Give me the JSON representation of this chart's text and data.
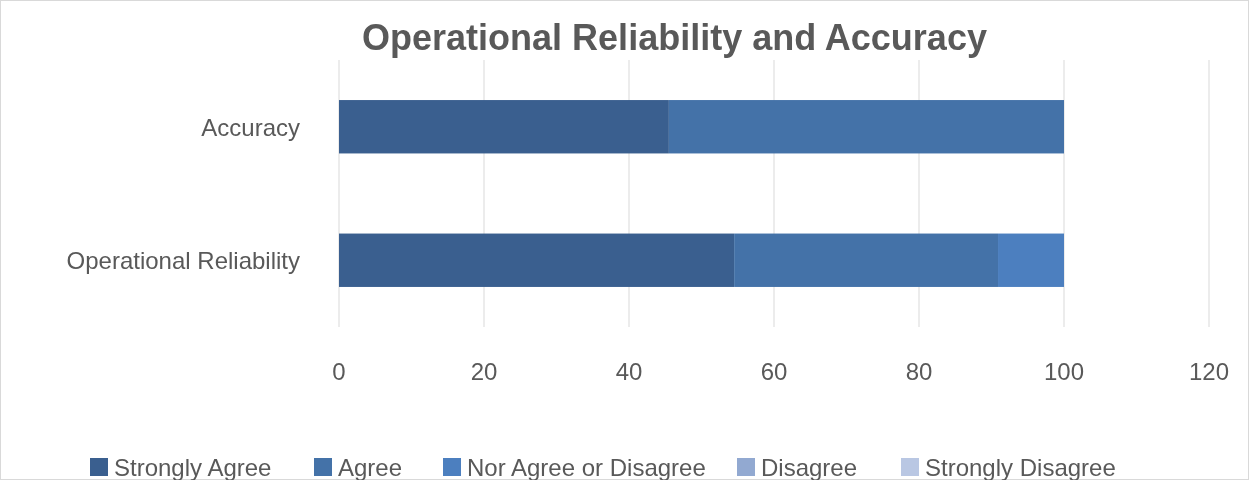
{
  "chart_data": {
    "type": "bar",
    "orientation": "horizontal",
    "stacked": true,
    "title": "Operational Reliability and Accuracy",
    "categories": [
      "Accuracy",
      "Operational Reliability"
    ],
    "series": [
      {
        "name": "Strongly Agree",
        "color": "#3a5f8f",
        "values": [
          45.5,
          54.5
        ]
      },
      {
        "name": "Agree",
        "color": "#4472a8",
        "values": [
          54.5,
          36.4
        ]
      },
      {
        "name": "Nor Agree or Disagree",
        "color": "#4c7fbf",
        "values": [
          0,
          9.1
        ]
      },
      {
        "name": "Disagree",
        "color": "#92a9d1",
        "values": [
          0,
          0
        ]
      },
      {
        "name": "Strongly Disagree",
        "color": "#b9c7e3",
        "values": [
          0,
          0
        ]
      }
    ],
    "xlim": [
      0,
      120
    ],
    "xticks": [
      0,
      20,
      40,
      60,
      80,
      100,
      120
    ],
    "grid": "x",
    "legend": "bottom"
  }
}
